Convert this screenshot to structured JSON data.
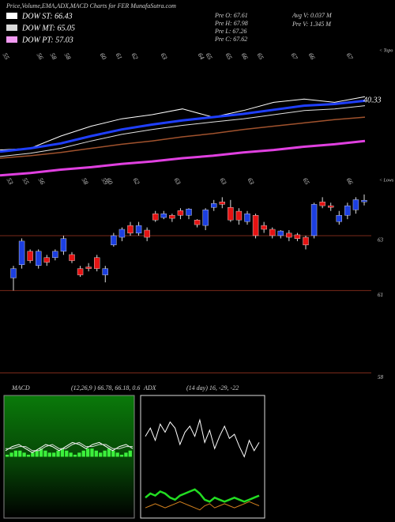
{
  "header": {
    "title": "Price,Volume,EMA,ADX,MACD Charts for FER MunafaSutra.com",
    "legend": [
      "DOW ST: 66.43",
      "DOW MT: 65.05",
      "DOW PT: 57.03"
    ],
    "legend_colors": [
      "#ffffff",
      "#d8d8d8",
      "#f29af2"
    ],
    "info": [
      "Pre O: 67.61",
      "Pre H: 67.98",
      "Pre L: 67.26",
      "Pre C: 67.62",
      "Avg V: 0.037 M",
      "Pre V: 1.345 M"
    ]
  },
  "chart_data": [
    {
      "type": "line",
      "top_labels": [
        "55",
        "56",
        "58",
        "58",
        "60",
        "61",
        "62",
        "63",
        "64",
        "65",
        "65",
        "66",
        "65",
        "67",
        "66",
        "67"
      ],
      "bottom_labels": [
        "53",
        "55",
        "56",
        "58",
        "59",
        "60",
        "62",
        "63",
        "63",
        "63",
        "65",
        "66"
      ],
      "right_labels": [
        "< Topo",
        "40.33",
        "< Lows"
      ],
      "ylim": [
        54,
        70
      ],
      "series": [
        {
          "color": "#ffffff",
          "width": 1,
          "values": [
            57.7,
            57.9,
            59.4,
            60.6,
            61.5,
            62.0,
            62.7,
            61.7,
            62.5,
            63.5,
            63.9,
            63.5,
            64.2
          ]
        },
        {
          "color": "#1f3fff",
          "width": 3,
          "values": [
            57.5,
            57.9,
            58.5,
            59.4,
            60.2,
            60.8,
            61.3,
            61.7,
            62.1,
            62.6,
            63.1,
            63.3,
            63.7
          ]
        },
        {
          "color": "#e0e0e0",
          "width": 1,
          "values": [
            56.9,
            57.3,
            57.9,
            58.8,
            59.6,
            60.2,
            60.7,
            61.1,
            61.5,
            62.0,
            62.5,
            62.7,
            63.1
          ]
        },
        {
          "color": "#a0522d",
          "width": 1.5,
          "values": [
            56.7,
            57.0,
            57.4,
            57.9,
            58.4,
            58.8,
            59.3,
            59.7,
            60.2,
            60.6,
            61.0,
            61.4,
            61.7
          ]
        },
        {
          "color": "#e040e0",
          "width": 3,
          "values": [
            54.6,
            54.9,
            55.3,
            55.6,
            56.0,
            56.3,
            56.7,
            57.0,
            57.4,
            57.7,
            58.1,
            58.4,
            58.8
          ]
        }
      ]
    },
    {
      "type": "candlestick",
      "up_color": "#1c3fe0",
      "down_color": "#e51313",
      "ylim": [
        57.9,
        64.9
      ],
      "yticks": [
        63,
        61,
        58
      ],
      "grid": true,
      "open": [
        61.46,
        61.94,
        62.43,
        61.91,
        62.2,
        62.2,
        62.43,
        62.31,
        61.8,
        61.86,
        62.2,
        61.57,
        62.66,
        62.94,
        63.37,
        63.09,
        63.2,
        63.8,
        63.66,
        63.74,
        63.91,
        63.74,
        63.57,
        63.37,
        64.03,
        64.23,
        64.03,
        63.89,
        63.51,
        63.74,
        63.37,
        63.23,
        63.0,
        63.09,
        63.03,
        62.94,
        63.0,
        64.23,
        64.09,
        63.51,
        63.74,
        63.94,
        64.23
      ],
      "close": [
        61.8,
        62.8,
        62.09,
        62.43,
        62.03,
        62.43,
        62.89,
        62.09,
        61.57,
        61.8,
        61.8,
        61.8,
        63.0,
        63.23,
        63.09,
        63.37,
        62.94,
        63.57,
        63.8,
        63.63,
        63.74,
        63.97,
        63.4,
        63.94,
        64.17,
        64.14,
        63.57,
        63.57,
        63.8,
        63.0,
        63.23,
        63.0,
        63.17,
        62.94,
        62.89,
        62.66,
        64.14,
        64.09,
        64.03,
        63.74,
        64.09,
        64.31,
        64.29
      ],
      "high": [
        61.9,
        62.9,
        62.5,
        62.5,
        62.3,
        62.5,
        63.0,
        62.4,
        61.9,
        62.0,
        62.3,
        61.9,
        63.1,
        63.3,
        63.5,
        63.5,
        63.3,
        63.9,
        63.9,
        63.8,
        64.0,
        64.0,
        63.6,
        64.0,
        64.3,
        64.4,
        64.3,
        64.0,
        63.9,
        63.8,
        63.5,
        63.3,
        63.2,
        63.2,
        63.1,
        63.0,
        64.2,
        64.4,
        64.2,
        63.9,
        64.2,
        64.4,
        64.5
      ],
      "low": [
        61.0,
        61.8,
        62.0,
        61.8,
        61.9,
        62.1,
        62.3,
        62.0,
        61.5,
        61.7,
        61.7,
        61.3,
        62.6,
        62.8,
        63.0,
        63.0,
        62.8,
        63.5,
        63.6,
        63.5,
        63.6,
        63.6,
        63.3,
        63.2,
        63.9,
        64.0,
        63.5,
        63.4,
        63.4,
        62.9,
        63.1,
        62.9,
        62.9,
        62.8,
        62.8,
        62.5,
        62.9,
        64.0,
        63.9,
        63.4,
        63.6,
        63.8,
        64.1
      ]
    },
    {
      "type": "macd",
      "title": "MACD",
      "subtitle": "(12,26,9 ) 66.78, 66.18, 0.6",
      "ylim": [
        -3,
        3
      ],
      "series": [
        {
          "color": "#ffffff",
          "values": [
            0.3,
            0.5,
            0.6,
            0.4,
            0.2,
            0.4,
            0.6,
            0.5,
            0.3,
            0.5,
            0.7,
            0.6,
            0.4,
            0.6,
            0.7,
            0.5,
            0.3,
            0.5,
            0.6,
            0.4
          ]
        },
        {
          "color": "#dddddd",
          "values": [
            0.4,
            0.4,
            0.5,
            0.5,
            0.3,
            0.3,
            0.5,
            0.6,
            0.4,
            0.4,
            0.6,
            0.7,
            0.5,
            0.5,
            0.6,
            0.6,
            0.4,
            0.4,
            0.5,
            0.5
          ]
        }
      ],
      "histogram": {
        "color": "#3cf03c",
        "values": [
          0.1,
          0.2,
          0.3,
          0.3,
          0.2,
          0.1,
          0.2,
          0.3,
          0.4,
          0.3,
          0.2,
          0.2,
          0.3,
          0.4,
          0.3,
          0.2,
          0.1,
          0.2,
          0.3,
          0.4,
          0.4,
          0.3,
          0.2,
          0.3,
          0.4,
          0.3,
          0.2,
          0.1,
          0.2,
          0.3
        ]
      }
    },
    {
      "type": "adx",
      "title": "ADX",
      "subtitle": "(14 day) 16, -29, -22",
      "ylim": [
        0,
        60
      ],
      "series": [
        {
          "color": "#ffffff",
          "width": 1,
          "values": [
            40,
            44,
            38,
            46,
            42,
            47,
            44,
            36,
            42,
            45,
            40,
            48,
            37,
            43,
            34,
            40,
            45,
            39,
            41,
            35,
            30,
            38,
            33,
            37
          ]
        },
        {
          "color": "#22dd22",
          "width": 2.5,
          "values": [
            10,
            12,
            11,
            13,
            12,
            10,
            9,
            11,
            12,
            13,
            14,
            12,
            9,
            8,
            10,
            9,
            8,
            9,
            10,
            9,
            8,
            9,
            10,
            11
          ]
        },
        {
          "color": "#d2801e",
          "width": 1,
          "values": [
            5,
            6,
            7,
            6,
            5,
            6,
            7,
            8,
            7,
            6,
            5,
            4,
            6,
            7,
            5,
            6,
            7,
            6,
            5,
            6,
            7,
            8,
            7,
            6
          ]
        }
      ]
    }
  ]
}
